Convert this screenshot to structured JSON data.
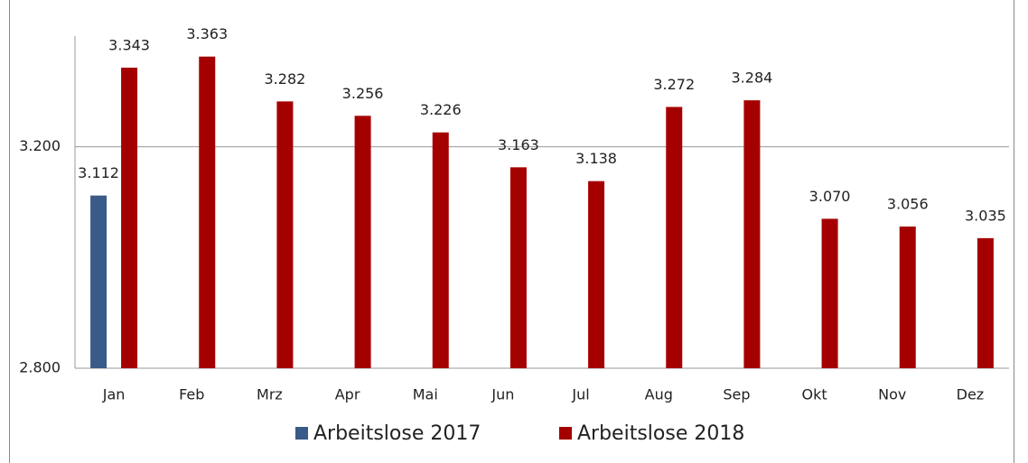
{
  "chart_data": {
    "type": "bar",
    "categories": [
      "Jan",
      "Feb",
      "Mrz",
      "Apr",
      "Mai",
      "Jun",
      "Jul",
      "Aug",
      "Sep",
      "Okt",
      "Nov",
      "Dez"
    ],
    "series": [
      {
        "name": "Arbeitslose 2017",
        "color": "#3a5a87",
        "values": [
          3112,
          null,
          null,
          null,
          null,
          null,
          null,
          null,
          null,
          null,
          null,
          null
        ],
        "value_labels": [
          "3.112",
          null,
          null,
          null,
          null,
          null,
          null,
          null,
          null,
          null,
          null,
          null
        ]
      },
      {
        "name": "Arbeitslose 2018",
        "color": "#a50000",
        "values": [
          3343,
          3363,
          3282,
          3256,
          3226,
          3163,
          3138,
          3272,
          3284,
          3070,
          3056,
          3035
        ],
        "value_labels": [
          "3.343",
          "3.363",
          "3.282",
          "3.256",
          "3.226",
          "3.163",
          "3.138",
          "3.272",
          "3.284",
          "3.070",
          "3.056",
          "3.035"
        ]
      }
    ],
    "ylim": [
      2800,
      3400
    ],
    "yticks": [
      {
        "value": 2800,
        "label": "2.800"
      },
      {
        "value": 3200,
        "label": "3.200"
      }
    ],
    "grid": true,
    "legend": "bottom"
  }
}
